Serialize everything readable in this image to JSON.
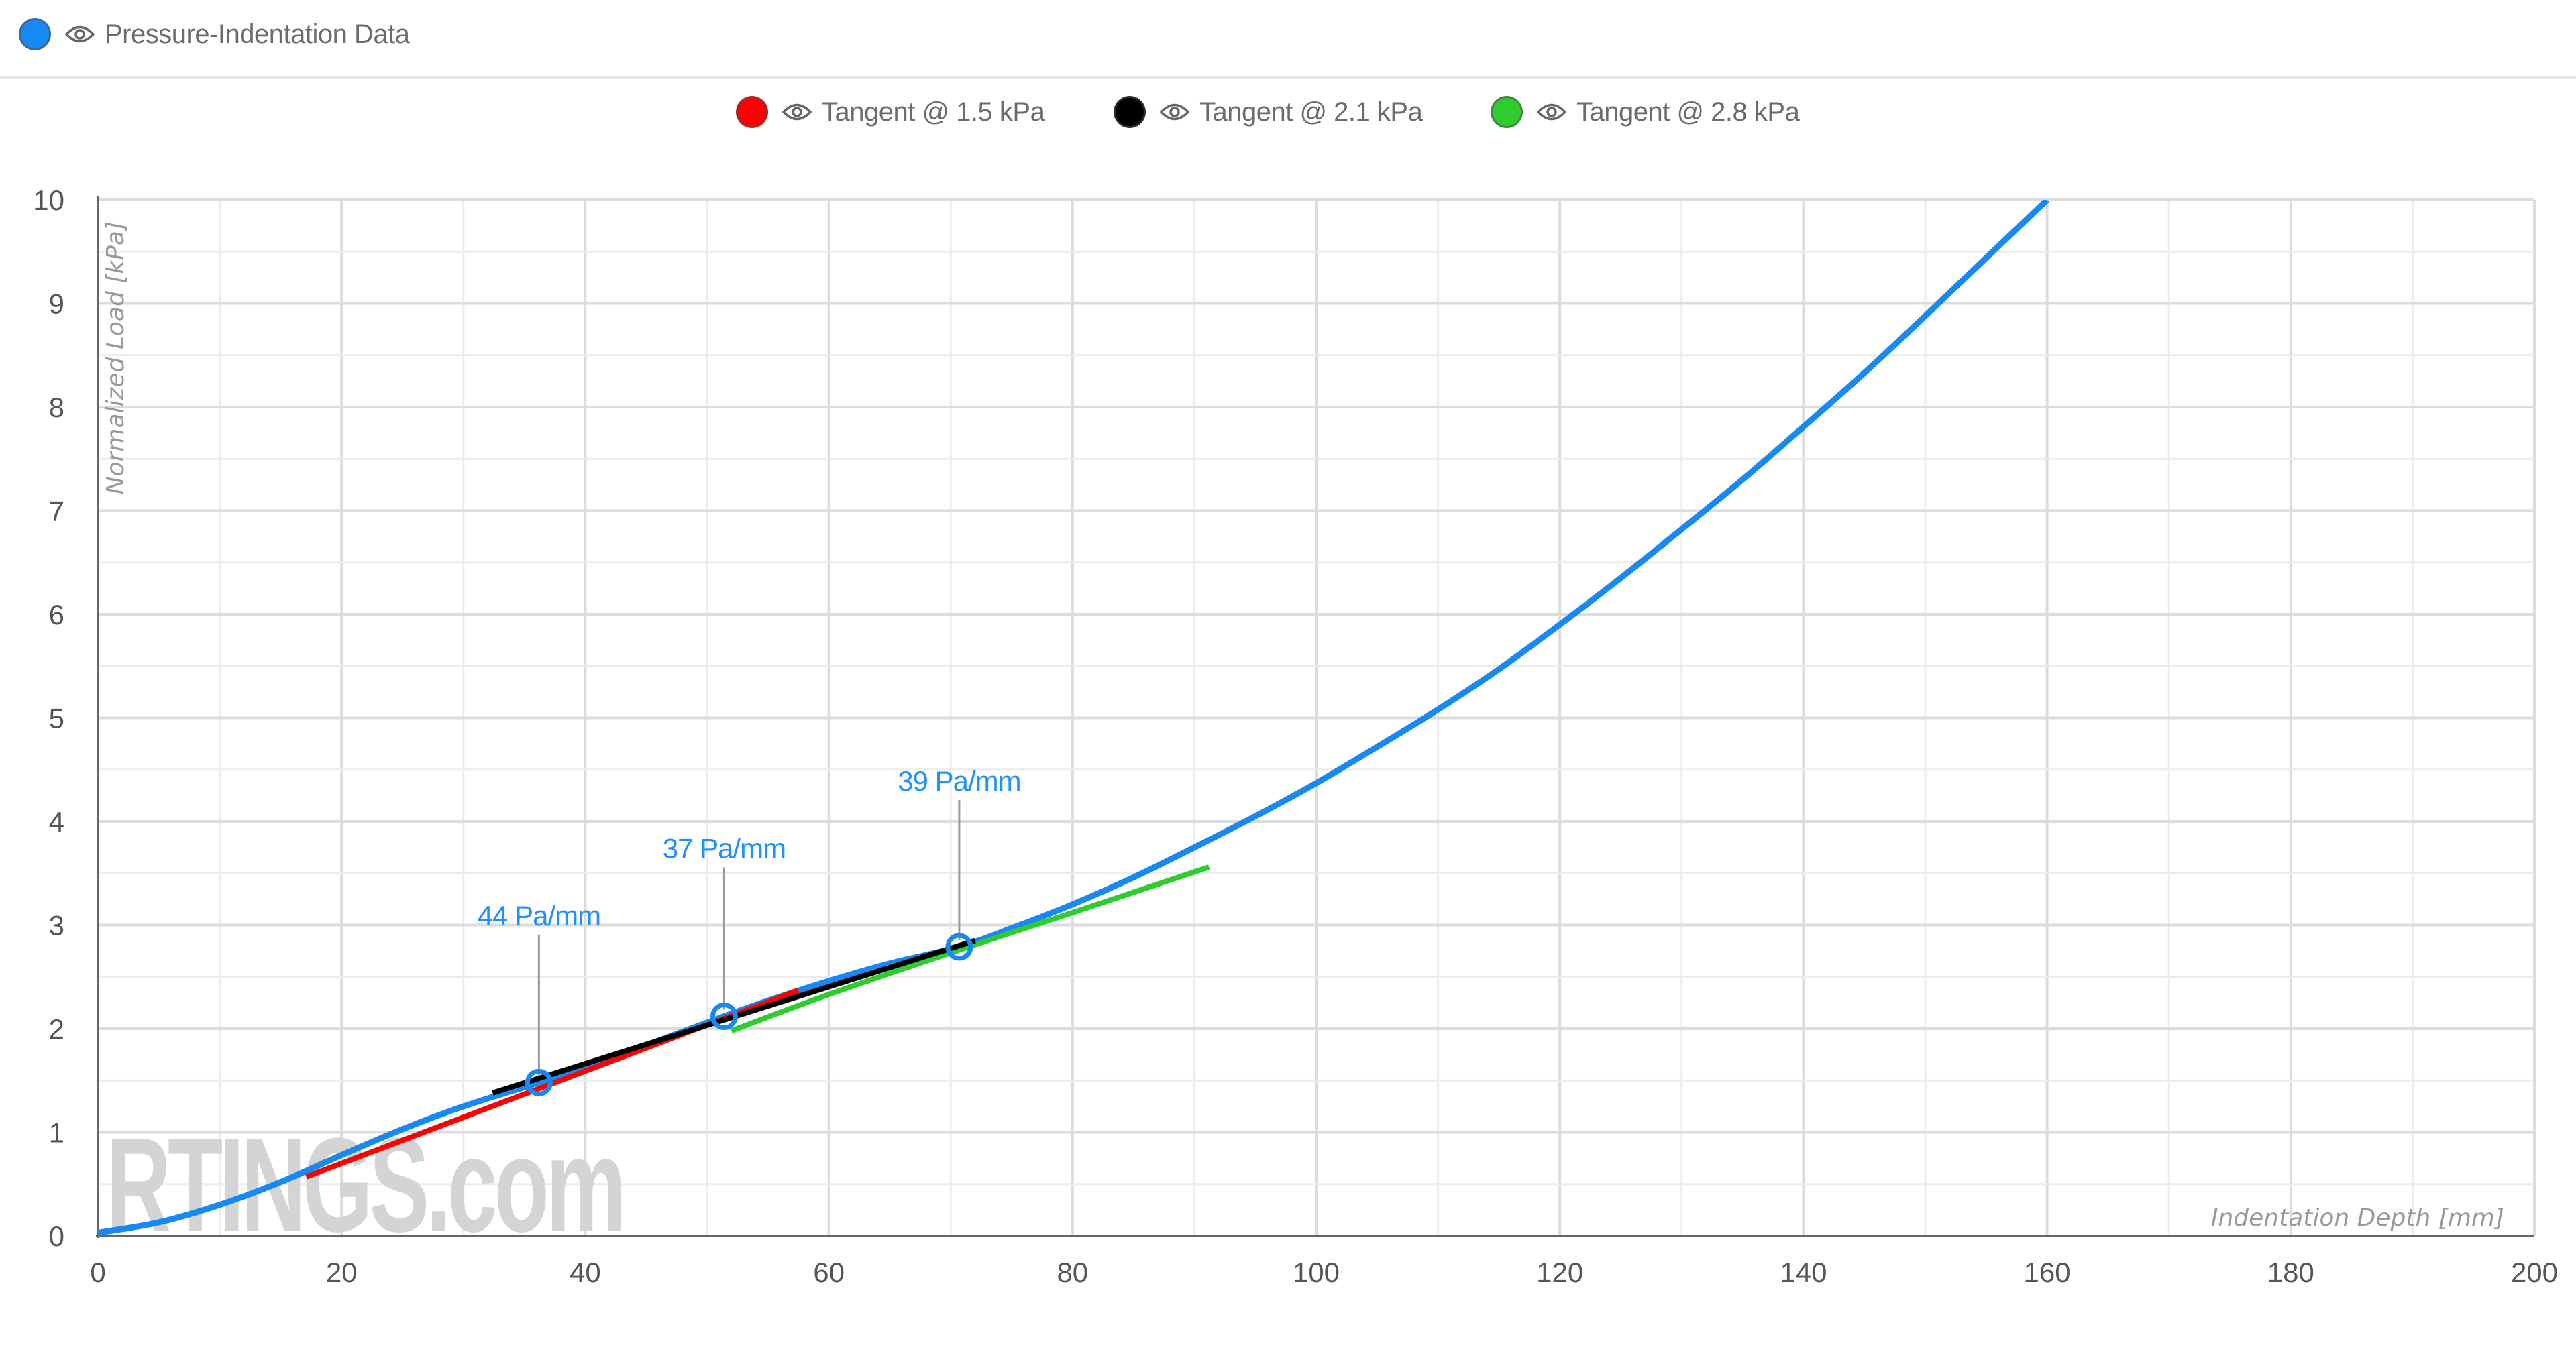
{
  "header": {
    "series_legend": {
      "label": "Pressure-Indentation Data",
      "color": "#1689f5",
      "icon": "eye-icon"
    }
  },
  "legend": {
    "items": [
      {
        "label": "Tangent @ 1.5 kPa",
        "color": "#ff0000",
        "icon": "eye-icon"
      },
      {
        "label": "Tangent @ 2.1 kPa",
        "color": "#000000",
        "icon": "eye-icon"
      },
      {
        "label": "Tangent @ 2.8 kPa",
        "color": "#2ecc2e",
        "icon": "eye-icon"
      }
    ]
  },
  "watermark": "RTINGS.com",
  "chart_data": {
    "type": "line",
    "title": "",
    "xlabel": "Indentation Depth [mm]",
    "ylabel": "Normalized Load [kPa]",
    "xlim": [
      0,
      200
    ],
    "ylim": [
      0,
      10
    ],
    "x_ticks": [
      0,
      20,
      40,
      60,
      80,
      100,
      120,
      140,
      160,
      180,
      200
    ],
    "y_ticks": [
      0,
      1,
      2,
      3,
      4,
      5,
      6,
      7,
      8,
      9,
      10
    ],
    "grid": true,
    "minor_grid": true,
    "legend_position": "top",
    "series": [
      {
        "name": "Pressure-Indentation Data",
        "color": "#1689f5",
        "x": [
          0,
          5,
          10,
          15,
          20,
          25,
          30,
          36.2,
          40,
          45,
          51.4,
          55,
          60,
          65,
          70.7,
          75,
          80,
          85,
          90,
          95,
          100,
          105,
          110,
          115,
          120,
          125,
          130,
          135,
          140,
          145,
          150,
          155,
          160
        ],
        "y": [
          0.03,
          0.13,
          0.3,
          0.52,
          0.78,
          1.03,
          1.25,
          1.48,
          1.63,
          1.84,
          2.12,
          2.27,
          2.46,
          2.63,
          2.79,
          2.97,
          3.2,
          3.46,
          3.75,
          4.05,
          4.37,
          4.72,
          5.08,
          5.47,
          5.9,
          6.35,
          6.82,
          7.3,
          7.81,
          8.33,
          8.88,
          9.44,
          10.0
        ]
      },
      {
        "name": "Tangent @ 1.5 kPa",
        "color": "#ff0000",
        "x": [
          17.1,
          57.5
        ],
        "y": [
          0.57,
          2.37
        ]
      },
      {
        "name": "Tangent @ 2.1 kPa",
        "color": "#000000",
        "x": [
          32.4,
          72.0
        ],
        "y": [
          1.38,
          2.85
        ]
      },
      {
        "name": "Tangent @ 2.8 kPa",
        "color": "#2ecc2e",
        "x": [
          52.0,
          60,
          70.7,
          80,
          91.2
        ],
        "y": [
          1.98,
          2.33,
          2.76,
          3.12,
          3.56
        ]
      }
    ],
    "annotations": [
      {
        "text": "44 Pa/mm",
        "x": 36.2,
        "y": 1.48,
        "label_y": 3.05
      },
      {
        "text": "37 Pa/mm",
        "x": 51.4,
        "y": 2.12,
        "label_y": 3.7
      },
      {
        "text": "39 Pa/mm",
        "x": 70.7,
        "y": 2.79,
        "label_y": 4.35
      }
    ]
  }
}
